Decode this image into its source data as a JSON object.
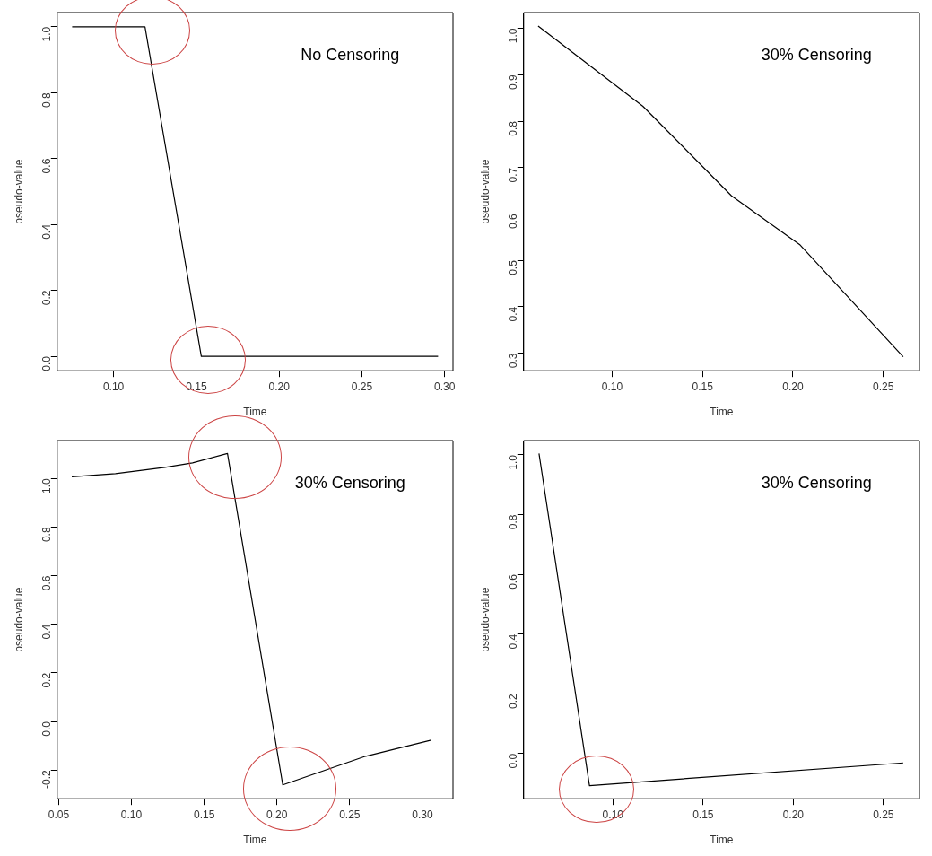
{
  "chart_data": [
    {
      "type": "line",
      "color": "#000000",
      "marker": "none",
      "line_style": "solid",
      "grid": false,
      "legend": false,
      "xlabel": "Time",
      "ylabel": "pseudo-value",
      "annotations": [
        "No Censoring"
      ],
      "x": [
        0.075,
        0.119,
        0.153,
        0.296
      ],
      "values": [
        1.0,
        1.0,
        0.0,
        0.0
      ],
      "xlim": [
        0.066,
        0.305
      ],
      "ylim": [
        -0.044,
        1.043
      ],
      "xticks": [
        {
          "value": 0.1,
          "label": "0.10"
        },
        {
          "value": 0.15,
          "label": "0.15"
        },
        {
          "value": 0.2,
          "label": "0.20"
        },
        {
          "value": 0.25,
          "label": "0.25"
        },
        {
          "value": 0.3,
          "label": "0.30"
        }
      ],
      "yticks": [
        {
          "value": 0,
          "label": "0.0"
        },
        {
          "value": 0.2,
          "label": "0.2"
        },
        {
          "value": 0.4,
          "label": "0.4"
        },
        {
          "value": 0.6,
          "label": "0.6"
        },
        {
          "value": 0.8,
          "label": "0.8"
        },
        {
          "value": 1,
          "label": "1.0"
        }
      ]
    },
    {
      "type": "line",
      "color": "#000000",
      "marker": "none",
      "line_style": "solid",
      "grid": false,
      "legend": false,
      "xlabel": "Time",
      "ylabel": "pseudo-value",
      "annotations": [
        "30% Censoring"
      ],
      "x": [
        0.059,
        0.117,
        0.166,
        0.204,
        0.261
      ],
      "values": [
        1.005,
        0.832,
        0.639,
        0.533,
        0.292
      ],
      "xlim": [
        0.051,
        0.27
      ],
      "ylim": [
        0.262,
        1.034
      ],
      "xticks": [
        {
          "value": 0.1,
          "label": "0.10"
        },
        {
          "value": 0.15,
          "label": "0.15"
        },
        {
          "value": 0.2,
          "label": "0.20"
        },
        {
          "value": 0.25,
          "label": "0.25"
        }
      ],
      "yticks": [
        {
          "value": 0.3,
          "label": "0.3"
        },
        {
          "value": 0.4,
          "label": "0.4"
        },
        {
          "value": 0.5,
          "label": "0.5"
        },
        {
          "value": 0.6,
          "label": "0.6"
        },
        {
          "value": 0.7,
          "label": "0.7"
        },
        {
          "value": 0.8,
          "label": "0.8"
        },
        {
          "value": 0.9,
          "label": "0.9"
        },
        {
          "value": 1,
          "label": "1.0"
        }
      ]
    },
    {
      "type": "line",
      "color": "#000000",
      "marker": "none",
      "line_style": "solid",
      "grid": false,
      "legend": false,
      "xlabel": "Time",
      "ylabel": "pseudo-value",
      "annotations": [
        "30% Censoring"
      ],
      "x": [
        0.059,
        0.089,
        0.123,
        0.142,
        0.166,
        0.204,
        0.261,
        0.306
      ],
      "values": [
        1.007,
        1.02,
        1.046,
        1.064,
        1.103,
        -0.261,
        -0.143,
        -0.077
      ],
      "xlim": [
        0.049,
        0.321
      ],
      "ylim": [
        -0.318,
        1.156
      ],
      "xticks": [
        {
          "value": 0.05,
          "label": "0.05"
        },
        {
          "value": 0.1,
          "label": "0.10"
        },
        {
          "value": 0.15,
          "label": "0.15"
        },
        {
          "value": 0.2,
          "label": "0.20"
        },
        {
          "value": 0.25,
          "label": "0.25"
        },
        {
          "value": 0.3,
          "label": "0.30"
        }
      ],
      "yticks": [
        {
          "value": -0.2,
          "label": "-0.2"
        },
        {
          "value": 0,
          "label": "0.0"
        },
        {
          "value": 0.2,
          "label": "0.2"
        },
        {
          "value": 0.4,
          "label": "0.4"
        },
        {
          "value": 0.6,
          "label": "0.6"
        },
        {
          "value": 0.8,
          "label": "0.8"
        },
        {
          "value": 1,
          "label": "1.0"
        }
      ]
    },
    {
      "type": "line",
      "color": "#000000",
      "marker": "none",
      "line_style": "solid",
      "grid": false,
      "legend": false,
      "xlabel": "Time",
      "ylabel": "pseudo-value",
      "annotations": [
        "30% Censoring"
      ],
      "x": [
        0.059,
        0.087,
        0.261
      ],
      "values": [
        1.005,
        -0.107,
        -0.031
      ],
      "xlim": [
        0.0505,
        0.27
      ],
      "ylim": [
        -0.151,
        1.048
      ],
      "xticks": [
        {
          "value": 0.1,
          "label": "0.10"
        },
        {
          "value": 0.15,
          "label": "0.15"
        },
        {
          "value": 0.2,
          "label": "0.20"
        },
        {
          "value": 0.25,
          "label": "0.25"
        }
      ],
      "yticks": [
        {
          "value": 0,
          "label": "0.0"
        },
        {
          "value": 0.2,
          "label": "0.2"
        },
        {
          "value": 0.4,
          "label": "0.4"
        },
        {
          "value": 0.6,
          "label": "0.6"
        },
        {
          "value": 0.8,
          "label": "0.8"
        },
        {
          "value": 1,
          "label": "1.0"
        }
      ]
    }
  ]
}
